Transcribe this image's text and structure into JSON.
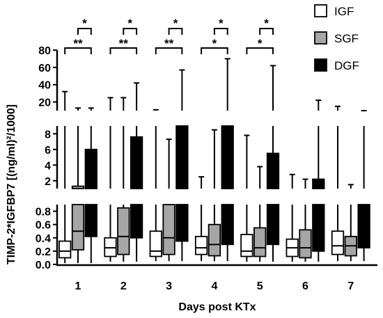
{
  "chart_data": {
    "type": "boxplot",
    "xlabel": "Days post KTx",
    "ylabel": "TIMP-2*IGFBP7 [(ng/ml)²/1000]",
    "categories": [
      "1",
      "2",
      "3",
      "4",
      "5",
      "6",
      "7"
    ],
    "series": [
      {
        "name": "IGF",
        "color": "#ffffff",
        "boxes": [
          {
            "min": 0.02,
            "q1": 0.1,
            "median": 0.2,
            "q3": 0.35,
            "max": 32
          },
          {
            "min": 0.04,
            "q1": 0.12,
            "median": 0.25,
            "q3": 0.4,
            "max": 25
          },
          {
            "min": 0.05,
            "q1": 0.12,
            "median": 0.2,
            "q3": 0.5,
            "max": 11
          },
          {
            "min": 0.05,
            "q1": 0.15,
            "median": 0.25,
            "q3": 0.42,
            "max": 2.5
          },
          {
            "min": 0.04,
            "q1": 0.12,
            "median": 0.2,
            "q3": 0.45,
            "max": 7.8
          },
          {
            "min": 0.04,
            "q1": 0.12,
            "median": 0.25,
            "q3": 0.38,
            "max": 2.8
          },
          {
            "min": 0.05,
            "q1": 0.15,
            "median": 0.28,
            "q3": 0.5,
            "max": 15
          }
        ]
      },
      {
        "name": "SGF",
        "color": "#a6a6a6",
        "boxes": [
          {
            "min": 0.02,
            "q1": 0.22,
            "median": 0.5,
            "q3": 1.3,
            "max": 13
          },
          {
            "min": 0.04,
            "q1": 0.15,
            "median": 0.42,
            "q3": 0.85,
            "max": 25
          },
          {
            "min": 0.05,
            "q1": 0.15,
            "median": 0.4,
            "q3": 1.0,
            "max": 7.3
          },
          {
            "min": 0.05,
            "q1": 0.13,
            "median": 0.3,
            "q3": 0.6,
            "max": 8.5
          },
          {
            "min": 0.04,
            "q1": 0.12,
            "median": 0.25,
            "q3": 0.55,
            "max": 3.8
          },
          {
            "min": 0.04,
            "q1": 0.1,
            "median": 0.25,
            "q3": 0.52,
            "max": 2.2
          },
          {
            "min": 0.05,
            "q1": 0.13,
            "median": 0.28,
            "q3": 0.42,
            "max": 1.5
          }
        ]
      },
      {
        "name": "DGF",
        "color": "#000000",
        "boxes": [
          {
            "min": 0.02,
            "q1": 0.42,
            "median": 0.6,
            "q3": 6.0,
            "max": 13
          },
          {
            "min": 0.04,
            "q1": 0.4,
            "median": 0.6,
            "q3": 7.6,
            "max": 42
          },
          {
            "min": 0.05,
            "q1": 0.35,
            "median": 1.0,
            "q3": 10,
            "max": 57
          },
          {
            "min": 0.05,
            "q1": 0.3,
            "median": 1.0,
            "q3": 10,
            "max": 70
          },
          {
            "min": 0.04,
            "q1": 0.3,
            "median": 0.8,
            "q3": 5.5,
            "max": 62
          },
          {
            "min": 0.04,
            "q1": 0.2,
            "median": 0.8,
            "q3": 2.2,
            "max": 22
          },
          {
            "min": 0.05,
            "q1": 0.25,
            "median": 0.6,
            "q3": 1.0,
            "max": 10
          }
        ]
      }
    ],
    "axis_segments": [
      {
        "range": [
          0,
          0.9
        ],
        "ticks": [
          "0.0",
          "0.2",
          "0.4",
          "0.6",
          "0.8"
        ],
        "tick_values": [
          0,
          0.2,
          0.4,
          0.6,
          0.8
        ]
      },
      {
        "range": [
          1,
          9
        ],
        "ticks": [
          "2",
          "4",
          "6",
          "8"
        ],
        "tick_values": [
          2,
          4,
          6,
          8
        ]
      },
      {
        "range": [
          10,
          80
        ],
        "ticks": [
          "20",
          "40",
          "60",
          "80"
        ],
        "tick_values": [
          20,
          40,
          60,
          80
        ]
      }
    ],
    "significance": [
      {
        "day": "1",
        "outer": "**",
        "inner": "*"
      },
      {
        "day": "2",
        "outer": "**",
        "inner": "*"
      },
      {
        "day": "3",
        "outer": "**",
        "inner": "*"
      },
      {
        "day": "4",
        "outer": "*",
        "inner": "*"
      },
      {
        "day": "5",
        "outer": "*",
        "inner": "*"
      }
    ],
    "legend_position": "top-right"
  }
}
